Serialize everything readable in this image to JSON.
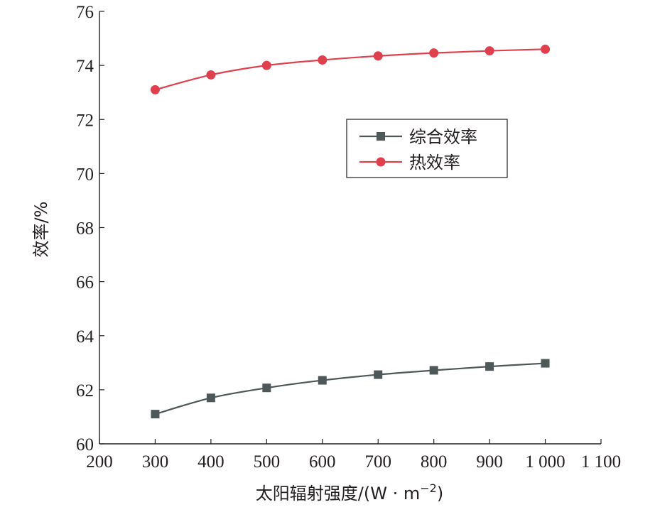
{
  "chart_data": {
    "type": "line",
    "xlabel": "太阳辐射强度/(W · m",
    "xlabel_sup": "−2",
    "xlabel_close": ")",
    "ylabel": "效率/%",
    "xlim": [
      200,
      1100
    ],
    "ylim": [
      60,
      76
    ],
    "x_ticks": [
      200,
      300,
      400,
      500,
      600,
      700,
      800,
      900,
      1000,
      1100
    ],
    "x_tick_labels": [
      "200",
      "300",
      "400",
      "500",
      "600",
      "700",
      "800",
      "900",
      "1 000",
      "1 100"
    ],
    "y_ticks": [
      60,
      62,
      64,
      66,
      68,
      70,
      72,
      74,
      76
    ],
    "y_tick_labels": [
      "60",
      "62",
      "64",
      "66",
      "68",
      "70",
      "72",
      "74",
      "76"
    ],
    "grid": false,
    "legend_position": "center-right",
    "x": [
      300,
      400,
      500,
      600,
      700,
      800,
      900,
      1000
    ],
    "series": [
      {
        "name": "综合效率",
        "marker": "square",
        "color": "#4e5859",
        "values": [
          61.1,
          61.7,
          62.07,
          62.35,
          62.56,
          62.72,
          62.86,
          62.98
        ]
      },
      {
        "name": "热效率",
        "marker": "circle",
        "color": "#e0404e",
        "values": [
          73.1,
          73.65,
          74.0,
          74.2,
          74.35,
          74.46,
          74.54,
          74.6
        ]
      }
    ]
  }
}
